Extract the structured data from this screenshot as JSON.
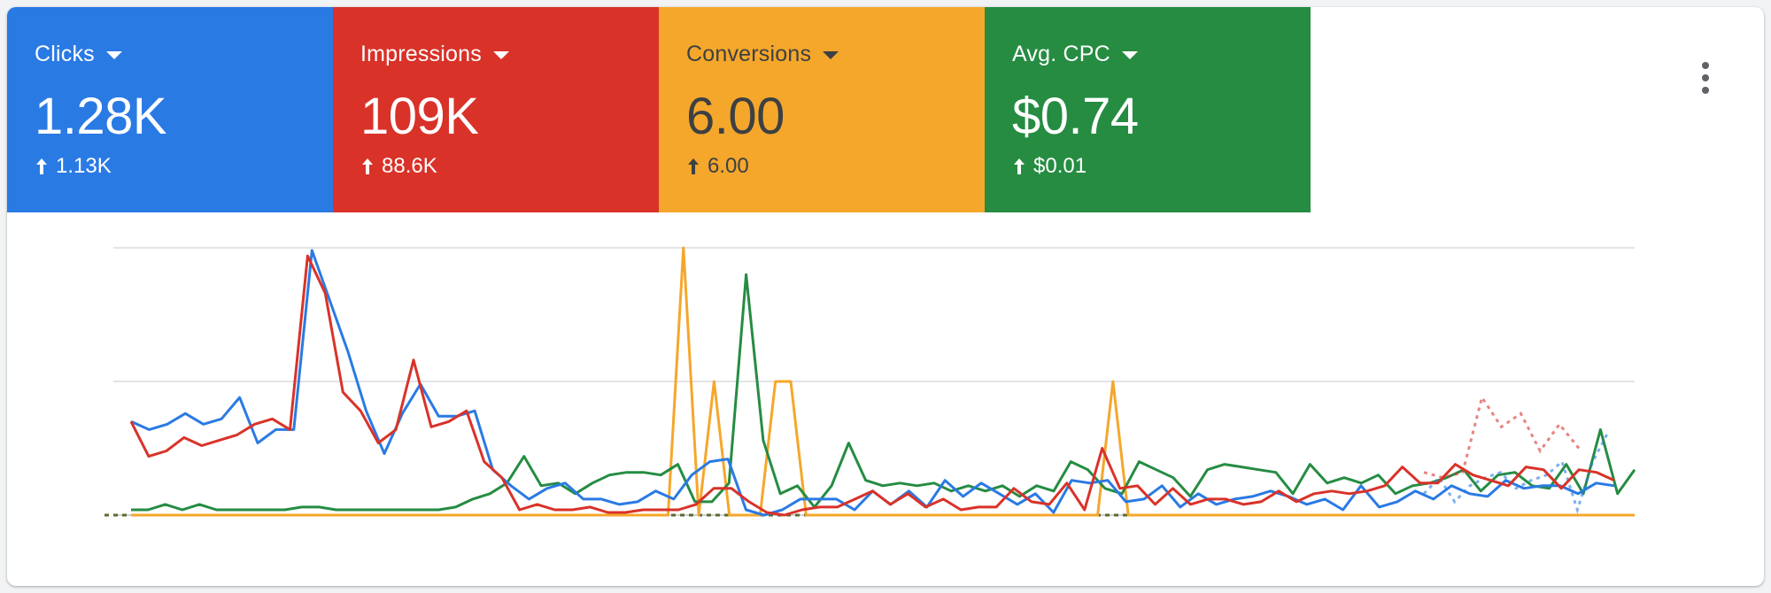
{
  "colors": {
    "clicks": "#2a7ae4",
    "impressions": "#d93229",
    "conversions": "#f5a72b",
    "avg_cpc": "#258c42"
  },
  "tiles": [
    {
      "label": "Clicks",
      "value": "1.28K",
      "delta": "1.13K",
      "color": "#2a7ae4",
      "text_color": "#ffffff"
    },
    {
      "label": "Impressions",
      "value": "109K",
      "delta": "88.6K",
      "color": "#d93229",
      "text_color": "#ffffff"
    },
    {
      "label": "Conversions",
      "value": "6.00",
      "delta": "6.00",
      "color": "#f5a72b",
      "text_color": "#3c4043"
    },
    {
      "label": "Avg. CPC",
      "value": "$0.74",
      "delta": "$0.01",
      "color": "#258c42",
      "text_color": "#ffffff"
    }
  ],
  "toolbar": {
    "more_icon": "more-vert-icon"
  },
  "chart_data": {
    "type": "line",
    "grid": true,
    "ylim": [
      0,
      100
    ],
    "series": [
      {
        "key": "clicks",
        "color": "#2a7ae4",
        "values": [
          35,
          32,
          34,
          38,
          34,
          36,
          44,
          27,
          32,
          32,
          99,
          80,
          61,
          39,
          23,
          38,
          49,
          37,
          37,
          39,
          17,
          11,
          6,
          10,
          12,
          6,
          6,
          4,
          5,
          9,
          6,
          15,
          20,
          21,
          2,
          0,
          2,
          6,
          6,
          6,
          2,
          9,
          4,
          9,
          3,
          13,
          7,
          12,
          8,
          4,
          8,
          1,
          13,
          12,
          13,
          5,
          6,
          11,
          3,
          8,
          4,
          6,
          7,
          9,
          7,
          4,
          6,
          2,
          11,
          3,
          5,
          9,
          6,
          11,
          8,
          7,
          13,
          10,
          11,
          11,
          8,
          12,
          11
        ],
        "dashed_tail": [
          8,
          14,
          5,
          11,
          14,
          16,
          10,
          13,
          15,
          20,
          2,
          20,
          31
        ]
      },
      {
        "key": "impressions",
        "color": "#d93229",
        "values": [
          35,
          22,
          24,
          29,
          26,
          28,
          30,
          34,
          36,
          32,
          97,
          83,
          46,
          39,
          27,
          32,
          58,
          33,
          35,
          39,
          20,
          14,
          2,
          4,
          2,
          2,
          3,
          1,
          1,
          2,
          2,
          2,
          4,
          10,
          10,
          5,
          1,
          0,
          2,
          3,
          3,
          6,
          9,
          4,
          8,
          3,
          6,
          2,
          3,
          3,
          10,
          5,
          4,
          12,
          2,
          25,
          10,
          11,
          4,
          10,
          4,
          6,
          6,
          4,
          5,
          9,
          5,
          8,
          9,
          8,
          9,
          11,
          18,
          12,
          12,
          19,
          15,
          13,
          11,
          18,
          17,
          10,
          17,
          16,
          13
        ],
        "dashed_tail": [
          16,
          14,
          16,
          44,
          33,
          38,
          24,
          34,
          25
        ]
      },
      {
        "key": "conversions",
        "color": "#f5a72b",
        "values": [
          0,
          0,
          0,
          0,
          0,
          0,
          0,
          0,
          0,
          0,
          0,
          0,
          0,
          0,
          0,
          0,
          0,
          0,
          0,
          0,
          0,
          0,
          0,
          0,
          0,
          0,
          0,
          0,
          0,
          0,
          0,
          0,
          0,
          0,
          0,
          0,
          100,
          0,
          50,
          0,
          0,
          0,
          50,
          50,
          0,
          0,
          0,
          0,
          0,
          0,
          0,
          0,
          0,
          0,
          0,
          0,
          0,
          0,
          0,
          0,
          0,
          0,
          0,
          0,
          50,
          0,
          0,
          0,
          0,
          0,
          0,
          0,
          0,
          0,
          0,
          0,
          0,
          0,
          0,
          0,
          0,
          0,
          0,
          0,
          0,
          0,
          0,
          0,
          0,
          0,
          0,
          0,
          0,
          0,
          0,
          0,
          0,
          0,
          0
        ]
      },
      {
        "key": "avg_cpc",
        "color": "#258c42",
        "values": [
          2,
          2,
          4,
          2,
          4,
          2,
          2,
          2,
          2,
          2,
          3,
          3,
          2,
          2,
          2,
          2,
          2,
          2,
          2,
          3,
          6,
          8,
          12,
          22,
          11,
          12,
          8,
          12,
          15,
          16,
          16,
          15,
          19,
          5,
          5,
          12,
          90,
          28,
          8,
          11,
          3,
          11,
          27,
          13,
          11,
          12,
          11,
          12,
          9,
          11,
          9,
          11,
          7,
          11,
          9,
          20,
          17,
          10,
          8,
          20,
          17,
          14,
          7,
          17,
          19,
          18,
          17,
          16,
          8,
          19,
          12,
          14,
          12,
          15,
          8,
          11,
          12,
          14,
          17,
          9,
          15,
          16,
          11,
          10,
          19,
          8,
          32,
          8,
          17
        ]
      }
    ],
    "baseline_dashed": true
  }
}
